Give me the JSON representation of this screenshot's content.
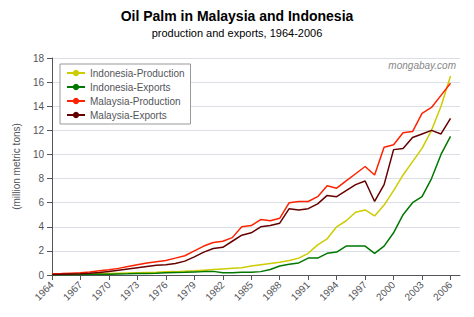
{
  "chart_data": {
    "type": "line",
    "title": "Oil Palm in Malaysia and Indonesia",
    "subtitle": "production and exports, 1964-2006",
    "ylabel": "(million metric tons)",
    "annotations": [
      "mongabay.com"
    ],
    "x": [
      1964,
      1965,
      1966,
      1967,
      1968,
      1969,
      1970,
      1971,
      1972,
      1973,
      1974,
      1975,
      1976,
      1977,
      1978,
      1979,
      1980,
      1981,
      1982,
      1983,
      1984,
      1985,
      1986,
      1987,
      1988,
      1989,
      1990,
      1991,
      1992,
      1993,
      1994,
      1995,
      1996,
      1997,
      1998,
      1999,
      2000,
      2001,
      2002,
      2003,
      2004,
      2005,
      2006
    ],
    "series": [
      {
        "name": "Indonesia-Production",
        "color": "#cccc00",
        "values": [
          0.06,
          0.07,
          0.08,
          0.09,
          0.1,
          0.11,
          0.13,
          0.15,
          0.17,
          0.19,
          0.21,
          0.23,
          0.26,
          0.28,
          0.32,
          0.35,
          0.4,
          0.45,
          0.5,
          0.55,
          0.6,
          0.75,
          0.85,
          0.95,
          1.05,
          1.2,
          1.4,
          1.8,
          2.5,
          3.0,
          4.0,
          4.5,
          5.2,
          5.4,
          4.9,
          5.8,
          7.0,
          8.3,
          9.4,
          10.5,
          12.0,
          14.0,
          16.5
        ]
      },
      {
        "name": "Indonesia-Exports",
        "color": "#007700",
        "values": [
          0.02,
          0.03,
          0.03,
          0.04,
          0.05,
          0.06,
          0.07,
          0.09,
          0.1,
          0.12,
          0.13,
          0.15,
          0.18,
          0.2,
          0.22,
          0.25,
          0.28,
          0.3,
          0.18,
          0.18,
          0.22,
          0.22,
          0.28,
          0.45,
          0.75,
          0.9,
          1.0,
          1.4,
          1.4,
          1.8,
          1.9,
          2.4,
          2.4,
          2.4,
          1.8,
          2.4,
          3.5,
          5.0,
          6.0,
          6.5,
          8.0,
          10.0,
          11.5
        ]
      },
      {
        "name": "Malaysia-Production",
        "color": "#ff2200",
        "values": [
          0.1,
          0.12,
          0.15,
          0.18,
          0.25,
          0.35,
          0.43,
          0.55,
          0.7,
          0.85,
          1.0,
          1.1,
          1.2,
          1.4,
          1.6,
          2.0,
          2.4,
          2.7,
          2.8,
          3.1,
          4.0,
          4.1,
          4.6,
          4.5,
          4.7,
          6.0,
          6.1,
          6.1,
          6.5,
          7.4,
          7.2,
          7.8,
          8.4,
          9.0,
          8.3,
          10.6,
          10.8,
          11.8,
          11.9,
          13.4,
          13.9,
          14.9,
          15.9
        ]
      },
      {
        "name": "Malaysia-Exports",
        "color": "#660000",
        "values": [
          0.05,
          0.07,
          0.09,
          0.11,
          0.15,
          0.2,
          0.3,
          0.4,
          0.5,
          0.6,
          0.7,
          0.8,
          0.85,
          0.95,
          1.15,
          1.5,
          1.9,
          2.2,
          2.3,
          2.8,
          3.3,
          3.5,
          4.0,
          4.1,
          4.3,
          5.5,
          5.4,
          5.5,
          5.9,
          6.6,
          6.5,
          7.0,
          7.5,
          7.8,
          6.1,
          7.5,
          10.4,
          10.5,
          11.4,
          11.7,
          12.0,
          11.7,
          13.0
        ]
      }
    ],
    "xlim": [
      1964,
      2007
    ],
    "xticks": [
      1964,
      1967,
      1970,
      1973,
      1976,
      1979,
      1982,
      1985,
      1988,
      1991,
      1994,
      1997,
      2000,
      2003,
      2006
    ],
    "ylim": [
      0,
      18
    ],
    "yticks": [
      0,
      2,
      4,
      6,
      8,
      10,
      12,
      14,
      16,
      18
    ],
    "grid": true,
    "legend": "upper left"
  }
}
